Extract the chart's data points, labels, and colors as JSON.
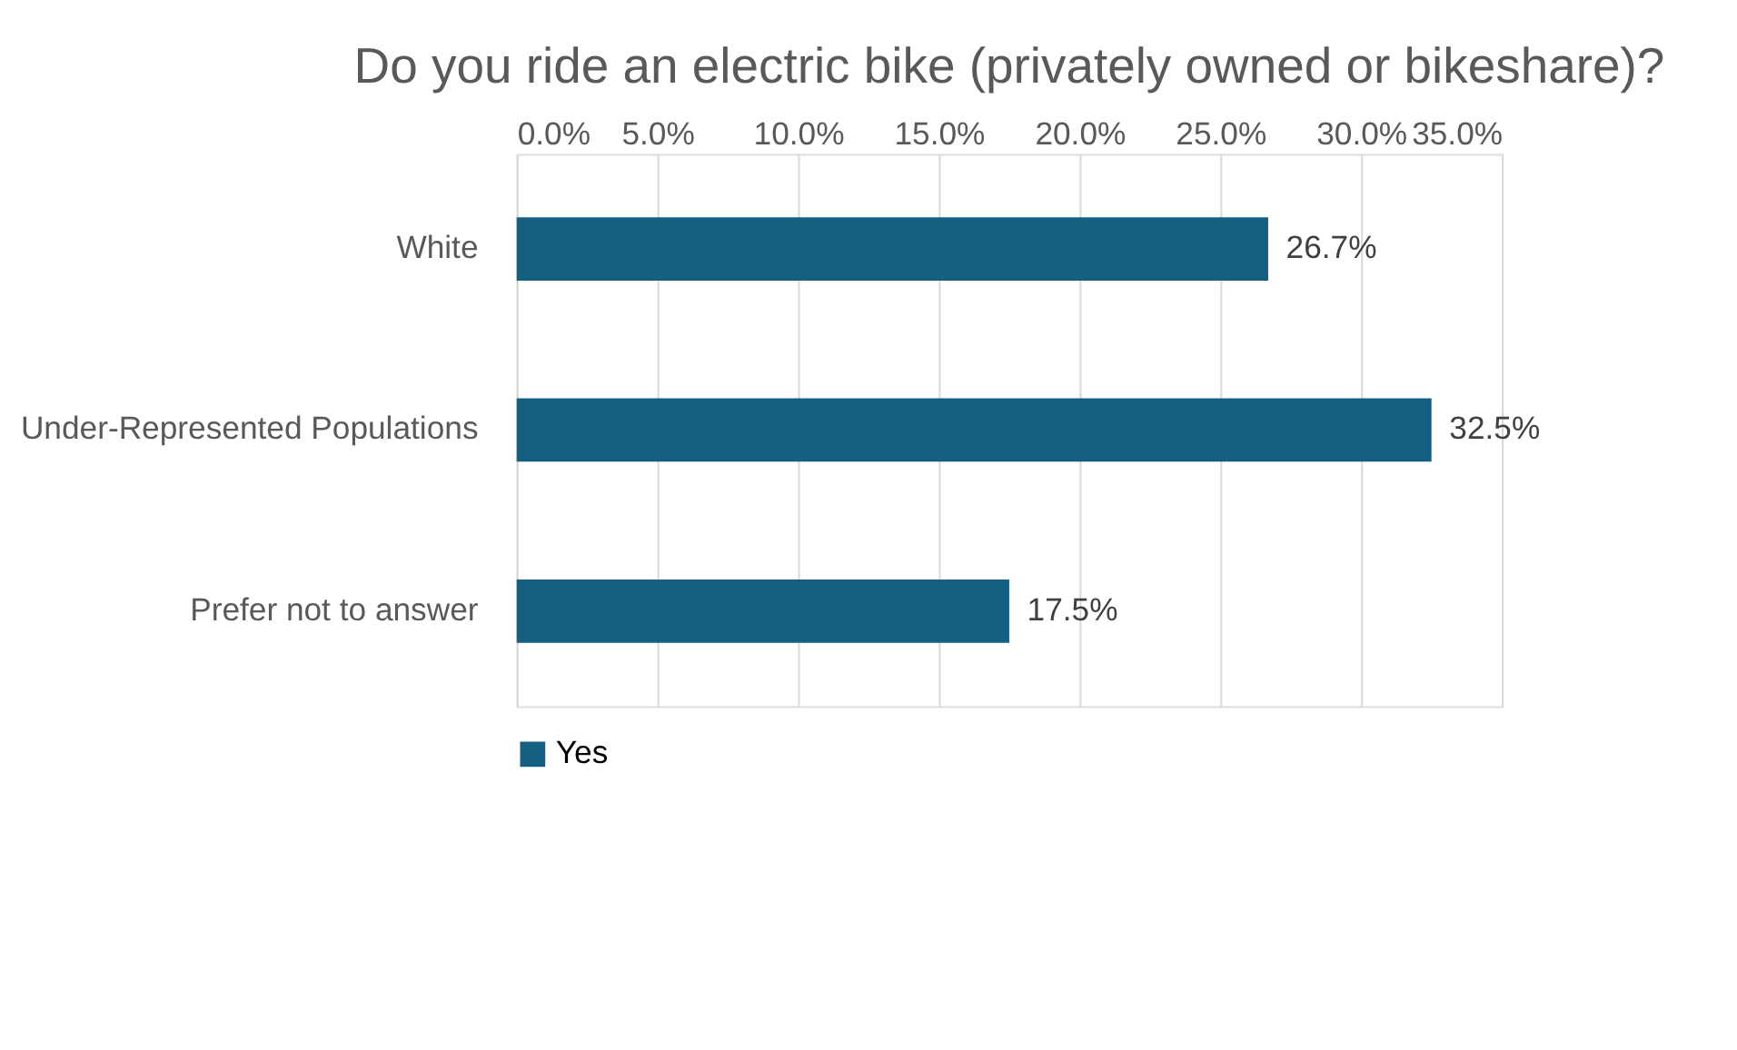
{
  "chart_data": {
    "type": "bar",
    "orientation": "horizontal",
    "title": "Do you ride an electric bike (privately owned or bikeshare)?",
    "categories": [
      "White",
      "Under-Represented Populations",
      "Prefer not to answer"
    ],
    "series": [
      {
        "name": "Yes",
        "color": "#156082",
        "values": [
          26.7,
          32.5,
          17.5
        ],
        "value_labels": [
          "26.7%",
          "32.5%",
          "17.5%"
        ]
      }
    ],
    "xlim": [
      0,
      35
    ],
    "xticks": [
      {
        "value": 0,
        "label": "0.0%"
      },
      {
        "value": 5,
        "label": "5.0%"
      },
      {
        "value": 10,
        "label": "10.0%"
      },
      {
        "value": 15,
        "label": "15.0%"
      },
      {
        "value": 20,
        "label": "20.0%"
      },
      {
        "value": 25,
        "label": "25.0%"
      },
      {
        "value": 30,
        "label": "30.0%"
      },
      {
        "value": 35,
        "label": "35.0%"
      }
    ],
    "grid": "x",
    "legend": "bottom"
  }
}
